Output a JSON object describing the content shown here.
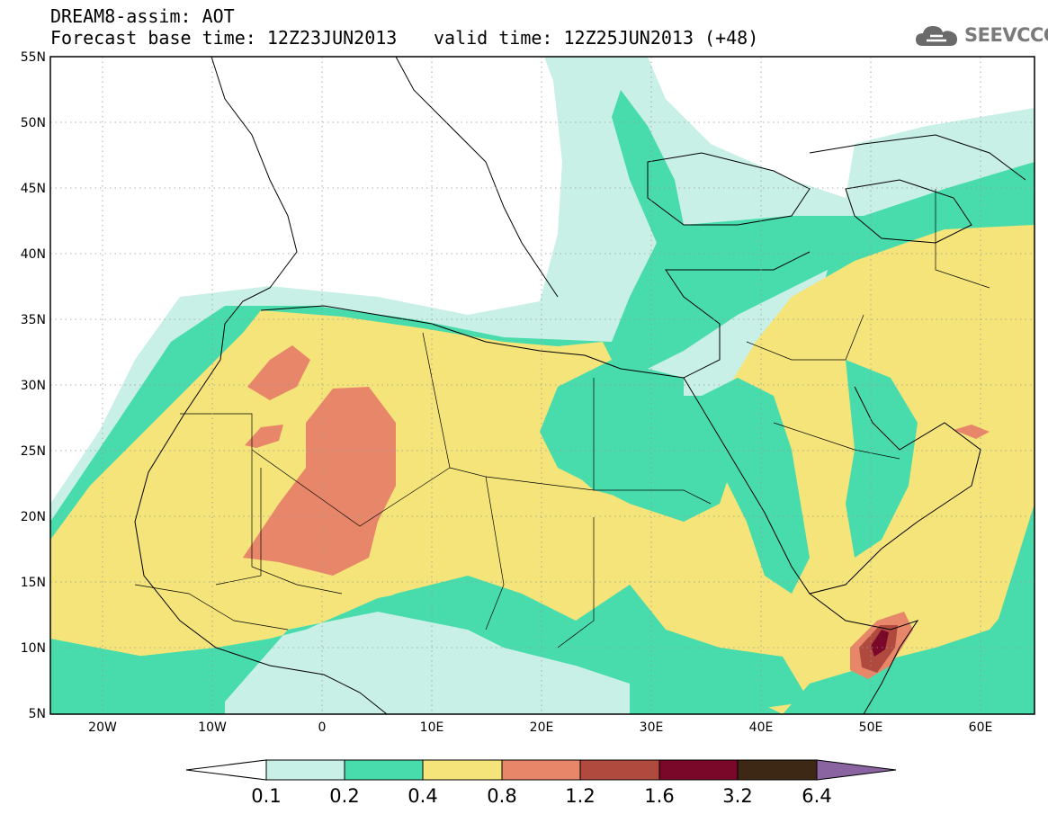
{
  "header": {
    "line1": "DREAM8-assim: AOT",
    "line2": "Forecast base time: 12Z23JUN2013",
    "valid": "valid time: 12Z25JUN2013 (+48)"
  },
  "logo": {
    "text": "SEEVCCC",
    "icon": "cloud-icon"
  },
  "map": {
    "lat_labels": [
      "55N",
      "50N",
      "45N",
      "40N",
      "35N",
      "30N",
      "25N",
      "20N",
      "15N",
      "10N",
      "5N"
    ],
    "lon_labels": [
      "20W",
      "10W",
      "0",
      "10E",
      "20E",
      "30E",
      "40E",
      "50E",
      "60E"
    ]
  },
  "colorbar": {
    "labels": [
      "0.1",
      "0.2",
      "0.4",
      "0.8",
      "1.2",
      "1.6",
      "3.2",
      "6.4"
    ],
    "colors": [
      "#ffffff",
      "#c8f0e6",
      "#48dcac",
      "#f4e47a",
      "#e8866a",
      "#b04a3e",
      "#7a0828",
      "#3c2814",
      "#8a64a0"
    ]
  },
  "colors": {
    "c01": "#c8f0e6",
    "c02": "#48dcac",
    "c04": "#f4e47a",
    "c08": "#e8866a",
    "c12": "#b04a3e",
    "c16": "#7a0828"
  }
}
